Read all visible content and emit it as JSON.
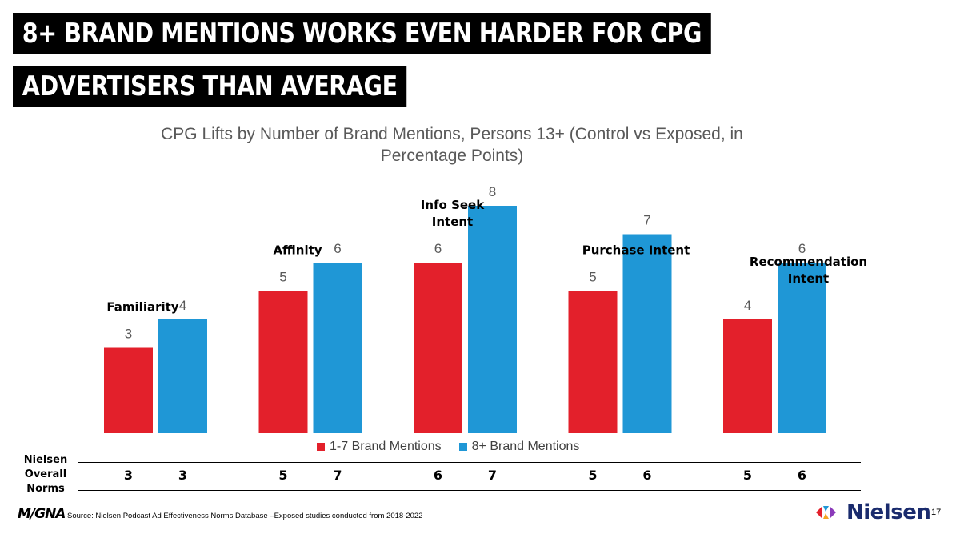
{
  "header": {
    "title_line1": "8+ BRAND MENTIONS WORKS EVEN HARDER FOR CPG",
    "title_line2": "ADVERTISERS THAN AVERAGE"
  },
  "chart_data": {
    "type": "bar",
    "title_line1": "CPG Lifts by Number of Brand Mentions, Persons 13+ (Control vs Exposed, in",
    "title_line2": "Percentage Points)",
    "categories": [
      "Familiarity",
      "Affinity",
      "Info Seek Intent",
      "Purchase Intent",
      "Recommendation Intent"
    ],
    "category_label_lines": [
      [
        "Familiarity"
      ],
      [
        "Affinity"
      ],
      [
        "Info Seek",
        "Intent"
      ],
      [
        "Purchase Intent"
      ],
      [
        "Recommendation",
        "Intent"
      ]
    ],
    "series": [
      {
        "name": "1-7 Brand Mentions",
        "color": "#e3202b",
        "values": [
          3,
          5,
          6,
          5,
          4
        ]
      },
      {
        "name": "8+ Brand Mentions",
        "color": "#1f97d6",
        "values": [
          4,
          6,
          8,
          7,
          6
        ]
      }
    ],
    "ylim": [
      0,
      8
    ],
    "xlabel": "",
    "ylabel": "",
    "legend_position": "bottom"
  },
  "norms": {
    "label": "Nielsen Overall Norms",
    "values": [
      [
        3,
        3
      ],
      [
        5,
        7
      ],
      [
        6,
        7
      ],
      [
        5,
        6
      ],
      [
        5,
        6
      ]
    ]
  },
  "footer": {
    "logo_text": "M/GNA",
    "source": "Source: Nielsen Podcast Ad Effectiveness Norms Database –Exposed studies conducted from 2018-2022",
    "brand": "Nielsen",
    "page_number": "17",
    "brand_colors": [
      "#e3202b",
      "#1f97d6",
      "#f5a623",
      "#8a3ab9"
    ]
  }
}
